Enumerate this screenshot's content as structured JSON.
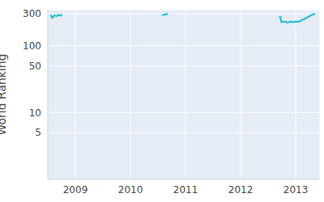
{
  "chart_data": {
    "type": "line",
    "y_label": "World Ranking",
    "log": "y",
    "grid": true,
    "color": "#17becf",
    "line_style": "solid",
    "x": [
      2008.55,
      2008.58,
      2008.62,
      2008.66,
      2008.7,
      2008.73,
      2008.76,
      null,
      2010.57,
      2010.62,
      2010.68,
      null,
      2012.7,
      2012.72,
      2012.74,
      2012.8,
      2012.85,
      2012.9,
      2012.95,
      2013.0,
      2013.05,
      2013.1,
      2013.15,
      2013.2,
      2013.25,
      2013.3,
      2013.35
    ],
    "values": [
      290,
      260,
      285,
      275,
      290,
      280,
      295,
      null,
      285,
      292,
      298,
      null,
      265,
      268,
      225,
      230,
      222,
      228,
      225,
      230,
      226,
      240,
      248,
      262,
      275,
      290,
      300
    ],
    "xlim": [
      2008.5,
      2013.44
    ],
    "xticks": [
      2009,
      2010,
      2011,
      2012,
      2013
    ],
    "ylim": [
      1,
      345
    ],
    "yticks": [
      5,
      10,
      50,
      100,
      300
    ]
  }
}
